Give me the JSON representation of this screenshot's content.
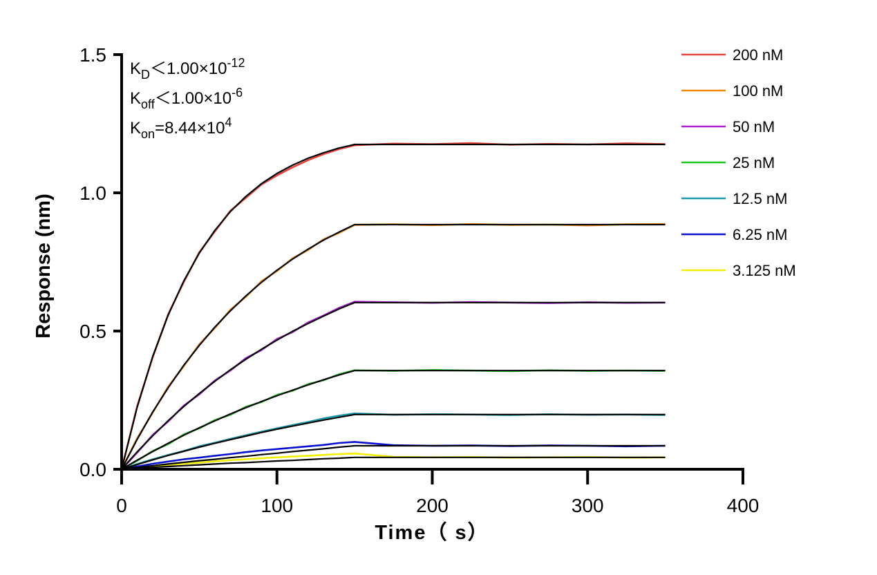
{
  "chart_data": {
    "type": "line",
    "xlabel": "Time（ s）",
    "ylabel": "Response (nm)",
    "xlim": [
      0,
      400
    ],
    "xticks": [
      0,
      100,
      200,
      300,
      400
    ],
    "ylim": [
      0,
      1.5
    ],
    "yticks": [
      {
        "value": 0,
        "label": "0.0"
      },
      0.5,
      {
        "value": 1,
        "label": "1.0"
      },
      {
        "value": 1.5,
        "label": "1.5"
      }
    ],
    "annotations": [
      [
        "K",
        "D",
        "＜1.00×10",
        "-12"
      ],
      [
        "K",
        "off",
        "＜1.00×10",
        "-6"
      ],
      [
        "K",
        "on",
        "=8.44×10",
        "4"
      ]
    ],
    "fit_color": "#000000",
    "x": [
      0,
      10,
      20,
      30,
      40,
      50,
      60,
      70,
      80,
      90,
      100,
      110,
      120,
      130,
      140,
      150,
      175,
      200,
      225,
      250,
      275,
      300,
      325,
      350
    ],
    "series": [
      {
        "name": "200 nM",
        "color": "#e8453c",
        "values": [
          0,
          0.228,
          0.405,
          0.561,
          0.677,
          0.785,
          0.86,
          0.935,
          0.982,
          1.03,
          1.063,
          1.092,
          1.118,
          1.14,
          1.158,
          1.172,
          1.178,
          1.176,
          1.18,
          1.174,
          1.177,
          1.175,
          1.179,
          1.176
        ],
        "fit": [
          0,
          0.224,
          0.408,
          0.558,
          0.681,
          0.782,
          0.864,
          0.932,
          0.987,
          1.033,
          1.07,
          1.1,
          1.125,
          1.145,
          1.162,
          1.175,
          1.175,
          1.175,
          1.175,
          1.175,
          1.175,
          1.175,
          1.175,
          1.175
        ]
      },
      {
        "name": "100 nM",
        "color": "#f08a0c",
        "values": [
          0,
          0.112,
          0.205,
          0.299,
          0.373,
          0.452,
          0.511,
          0.577,
          0.624,
          0.68,
          0.717,
          0.763,
          0.793,
          0.832,
          0.855,
          0.884,
          0.886,
          0.883,
          0.887,
          0.884,
          0.885,
          0.882,
          0.886,
          0.887
        ],
        "fit": [
          0,
          0.108,
          0.207,
          0.295,
          0.376,
          0.448,
          0.514,
          0.573,
          0.627,
          0.676,
          0.72,
          0.76,
          0.796,
          0.829,
          0.858,
          0.885,
          0.885,
          0.885,
          0.885,
          0.885,
          0.885,
          0.885,
          0.885,
          0.885
        ]
      },
      {
        "name": "50 nM",
        "color": "#b020d8",
        "values": [
          0,
          0.06,
          0.124,
          0.173,
          0.23,
          0.271,
          0.321,
          0.357,
          0.402,
          0.431,
          0.471,
          0.496,
          0.531,
          0.556,
          0.584,
          0.606,
          0.604,
          0.602,
          0.605,
          0.603,
          0.601,
          0.604,
          0.602,
          0.603
        ],
        "fit": [
          0,
          0.063,
          0.121,
          0.176,
          0.227,
          0.274,
          0.318,
          0.36,
          0.398,
          0.434,
          0.467,
          0.499,
          0.527,
          0.554,
          0.58,
          0.603,
          0.603,
          0.603,
          0.603,
          0.603,
          0.603,
          0.603,
          0.603,
          0.603
        ]
      },
      {
        "name": "25 nM",
        "color": "#1ec41e",
        "values": [
          0,
          0.031,
          0.066,
          0.091,
          0.126,
          0.148,
          0.178,
          0.197,
          0.226,
          0.243,
          0.269,
          0.284,
          0.308,
          0.322,
          0.344,
          0.358,
          0.356,
          0.359,
          0.357,
          0.355,
          0.358,
          0.356,
          0.357,
          0.356
        ],
        "fit": [
          0,
          0.033,
          0.064,
          0.094,
          0.123,
          0.15,
          0.175,
          0.2,
          0.223,
          0.245,
          0.266,
          0.286,
          0.305,
          0.324,
          0.341,
          0.357,
          0.357,
          0.357,
          0.357,
          0.357,
          0.357,
          0.357,
          0.357,
          0.357
        ]
      },
      {
        "name": "12.5 nM",
        "color": "#1b9aaa",
        "values": [
          0,
          0.019,
          0.036,
          0.052,
          0.066,
          0.083,
          0.096,
          0.11,
          0.123,
          0.136,
          0.148,
          0.16,
          0.171,
          0.184,
          0.194,
          0.202,
          0.197,
          0.199,
          0.198,
          0.196,
          0.199,
          0.197,
          0.198,
          0.196
        ],
        "fit": [
          0,
          0.017,
          0.034,
          0.05,
          0.065,
          0.08,
          0.094,
          0.107,
          0.12,
          0.133,
          0.145,
          0.156,
          0.167,
          0.178,
          0.188,
          0.198,
          0.198,
          0.198,
          0.198,
          0.198,
          0.198,
          0.198,
          0.198,
          0.198
        ]
      },
      {
        "name": "6.25 nM",
        "color": "#0a10d0",
        "values": [
          0,
          0.01,
          0.02,
          0.028,
          0.036,
          0.042,
          0.049,
          0.055,
          0.062,
          0.068,
          0.073,
          0.078,
          0.083,
          0.088,
          0.095,
          0.099,
          0.087,
          0.085,
          0.086,
          0.084,
          0.086,
          0.085,
          0.083,
          0.085
        ],
        "fit": [
          0,
          0.007,
          0.013,
          0.019,
          0.025,
          0.031,
          0.036,
          0.042,
          0.047,
          0.053,
          0.058,
          0.064,
          0.069,
          0.074,
          0.08,
          0.085,
          0.085,
          0.085,
          0.085,
          0.085,
          0.085,
          0.085,
          0.085,
          0.085
        ]
      },
      {
        "name": "3.125 nM",
        "color": "#f2ee00",
        "values": [
          0,
          0.004,
          0.01,
          0.016,
          0.02,
          0.024,
          0.029,
          0.033,
          0.036,
          0.04,
          0.043,
          0.046,
          0.049,
          0.052,
          0.055,
          0.057,
          0.045,
          0.043,
          0.044,
          0.042,
          0.043,
          0.044,
          0.042,
          0.043
        ],
        "fit": [
          0,
          0.003,
          0.007,
          0.01,
          0.013,
          0.016,
          0.019,
          0.022,
          0.024,
          0.027,
          0.03,
          0.032,
          0.035,
          0.038,
          0.04,
          0.043,
          0.043,
          0.043,
          0.043,
          0.043,
          0.043,
          0.043,
          0.043,
          0.043
        ]
      }
    ]
  }
}
